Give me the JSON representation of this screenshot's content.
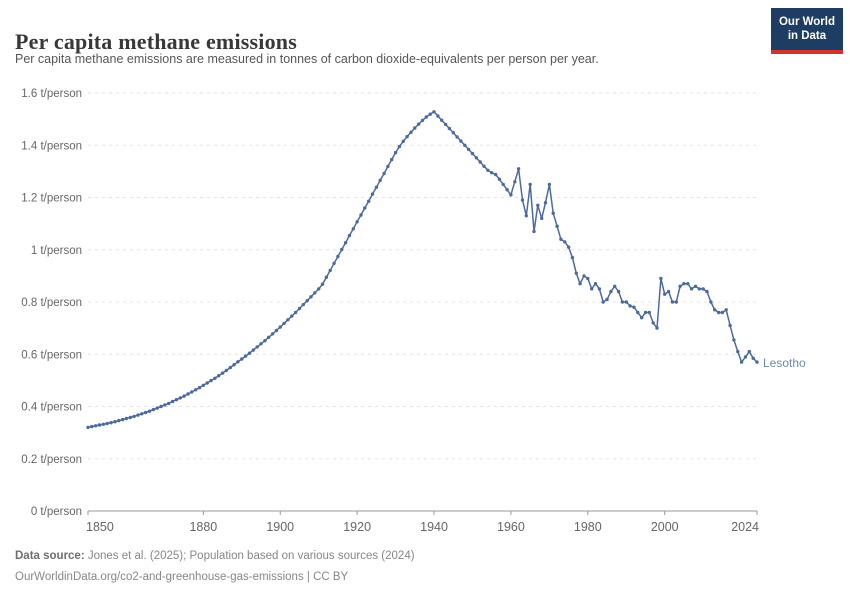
{
  "header": {
    "title": "Per capita methane emissions",
    "subtitle": "Per capita methane emissions are measured in tonnes of carbon dioxide-equivalents per person per year.",
    "logo_line1": "Our World",
    "logo_line2": "in Data",
    "logo_bg": "#1d3d63",
    "logo_red": "#d0342c"
  },
  "footer": {
    "source_label": "Data source:",
    "source_text": " Jones et al. (2025); Population based on various sources (2024)",
    "line2": "OurWorldinData.org/co2-and-greenhouse-gas-emissions | CC BY"
  },
  "chart_data": {
    "type": "line",
    "title": "Per capita methane emissions",
    "series_name": "Lesotho",
    "entity_label": "Lesotho",
    "line_color": "#4c6a9c",
    "entity_label_color": "#6d89aa",
    "grid_color": "#e4e4e4",
    "axis_color": "#9a9a9a",
    "tick_label_color": "#666666",
    "grid": true,
    "legend_position": "end-of-line",
    "xlabel": "",
    "ylabel": "t/person",
    "xlim": [
      1850,
      2024
    ],
    "ylim": [
      0,
      1.6
    ],
    "start_year": 1850,
    "end_year": 2024,
    "x_ticks": [
      {
        "year": 1850,
        "label": "1850",
        "anchor": "start"
      },
      {
        "year": 1880,
        "label": "1880",
        "anchor": "middle"
      },
      {
        "year": 1900,
        "label": "1900",
        "anchor": "middle"
      },
      {
        "year": 1920,
        "label": "1920",
        "anchor": "middle"
      },
      {
        "year": 1940,
        "label": "1940",
        "anchor": "middle"
      },
      {
        "year": 1960,
        "label": "1960",
        "anchor": "middle"
      },
      {
        "year": 1980,
        "label": "1980",
        "anchor": "middle"
      },
      {
        "year": 2000,
        "label": "2000",
        "anchor": "middle"
      },
      {
        "year": 2024,
        "label": "2024",
        "anchor": "end"
      }
    ],
    "y_ticks": [
      {
        "value": 0,
        "label": "0 t/person"
      },
      {
        "value": 0.2,
        "label": "0.2 t/person"
      },
      {
        "value": 0.4,
        "label": "0.4 t/person"
      },
      {
        "value": 0.6,
        "label": "0.6 t/person"
      },
      {
        "value": 0.8,
        "label": "0.8 t/person"
      },
      {
        "value": 1,
        "label": "1 t/person"
      },
      {
        "value": 1.2,
        "label": "1.2 t/person"
      },
      {
        "value": 1.4,
        "label": "1.4 t/person"
      },
      {
        "value": 1.6,
        "label": "1.6 t/person"
      }
    ],
    "values": [
      0.32,
      0.323,
      0.326,
      0.329,
      0.332,
      0.335,
      0.338,
      0.342,
      0.346,
      0.35,
      0.354,
      0.358,
      0.362,
      0.367,
      0.372,
      0.377,
      0.382,
      0.388,
      0.394,
      0.4,
      0.406,
      0.412,
      0.419,
      0.426,
      0.433,
      0.44,
      0.448,
      0.456,
      0.464,
      0.472,
      0.481,
      0.49,
      0.499,
      0.508,
      0.518,
      0.528,
      0.538,
      0.549,
      0.56,
      0.571,
      0.582,
      0.593,
      0.604,
      0.616,
      0.628,
      0.64,
      0.652,
      0.665,
      0.678,
      0.691,
      0.704,
      0.718,
      0.732,
      0.746,
      0.76,
      0.775,
      0.79,
      0.805,
      0.82,
      0.835,
      0.85,
      0.868,
      0.895,
      0.921,
      0.948,
      0.974,
      1.001,
      1.027,
      1.054,
      1.08,
      1.107,
      1.133,
      1.16,
      1.186,
      1.213,
      1.239,
      1.266,
      1.292,
      1.319,
      1.345,
      1.372,
      1.395,
      1.415,
      1.433,
      1.45,
      1.466,
      1.481,
      1.495,
      1.508,
      1.519,
      1.528,
      1.512,
      1.496,
      1.48,
      1.464,
      1.448,
      1.432,
      1.416,
      1.4,
      1.384,
      1.368,
      1.352,
      1.336,
      1.32,
      1.304,
      1.295,
      1.288,
      1.27,
      1.25,
      1.23,
      1.21,
      1.26,
      1.31,
      1.19,
      1.13,
      1.25,
      1.07,
      1.17,
      1.12,
      1.18,
      1.25,
      1.14,
      1.09,
      1.04,
      1.03,
      1.01,
      0.97,
      0.91,
      0.87,
      0.9,
      0.89,
      0.85,
      0.87,
      0.85,
      0.8,
      0.81,
      0.84,
      0.86,
      0.84,
      0.8,
      0.8,
      0.785,
      0.78,
      0.76,
      0.74,
      0.76,
      0.76,
      0.72,
      0.7,
      0.89,
      0.83,
      0.84,
      0.8,
      0.8,
      0.86,
      0.87,
      0.87,
      0.85,
      0.86,
      0.85,
      0.85,
      0.84,
      0.8,
      0.77,
      0.76,
      0.76,
      0.77,
      0.71,
      0.655,
      0.61,
      0.57,
      0.59,
      0.61,
      0.585,
      0.57
    ]
  }
}
